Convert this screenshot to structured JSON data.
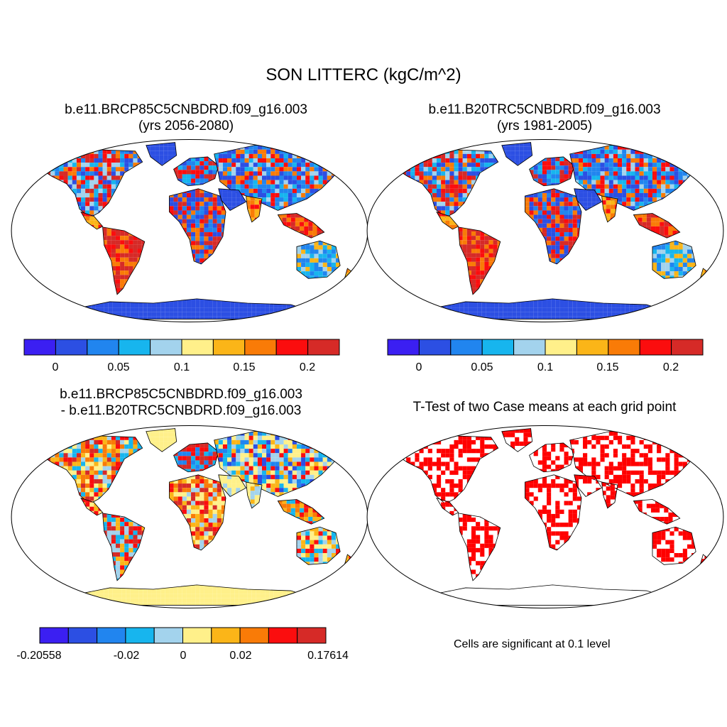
{
  "title": "SON LITTERC (kgC/m^2)",
  "palette": [
    "#3b1ff2",
    "#2c4fe3",
    "#2185ef",
    "#17b5ee",
    "#a3d3ed",
    "#fff08a",
    "#fbb518",
    "#f97b07",
    "#fb0d0e",
    "#d62a27"
  ],
  "land_outline_color": "#000000",
  "panels": [
    {
      "line1": "b.e11.BRCP85C5CNBDRD.f09_g16.003",
      "line2": "(yrs 2056-2080)"
    },
    {
      "line1": "b.e11.B20TRC5CNBDRD.f09_g16.003",
      "line2": "(yrs 1981-2005)"
    },
    {
      "line1": "b.e11.BRCP85C5CNBDRD.f09_g16.003",
      "line2": "- b.e11.B20TRC5CNBDRD.f09_g16.003"
    },
    {
      "line1": "T-Test of two Case means at each grid point",
      "line2": ""
    }
  ],
  "colorbars": {
    "top_left": [
      "0",
      "0.05",
      "0.1",
      "0.15",
      "0.2"
    ],
    "top_right": [
      "0",
      "0.05",
      "0.1",
      "0.15",
      "0.2"
    ],
    "bottom_left": [
      "-0.20558",
      "-0.02",
      "0",
      "0.02",
      "0.17614"
    ]
  },
  "ttest_note": "Cells are significant at 0.1 level",
  "ttest_color": "#ff0000",
  "chart_data": [
    {
      "type": "heatmap",
      "title": "b.e11.BRCP85C5CNBDRD.f09_g16.003 (yrs 2056-2080)",
      "projection": "Robinson",
      "colorbar_ticks": [
        0,
        0.05,
        0.1,
        0.15,
        0.2
      ],
      "levels": 10
    },
    {
      "type": "heatmap",
      "title": "b.e11.B20TRC5CNBDRD.f09_g16.003 (yrs 1981-2005)",
      "projection": "Robinson",
      "colorbar_ticks": [
        0,
        0.05,
        0.1,
        0.15,
        0.2
      ],
      "levels": 10
    },
    {
      "type": "heatmap",
      "title": "b.e11.BRCP85C5CNBDRD.f09_g16.003 - b.e11.B20TRC5CNBDRD.f09_g16.003",
      "projection": "Robinson",
      "colorbar_ticks": [
        -0.20558,
        -0.02,
        0,
        0.02,
        0.17614
      ],
      "levels": 10
    },
    {
      "type": "heatmap",
      "title": "T-Test of two Case means at each grid point",
      "projection": "Robinson",
      "significance_level": 0.1
    }
  ]
}
